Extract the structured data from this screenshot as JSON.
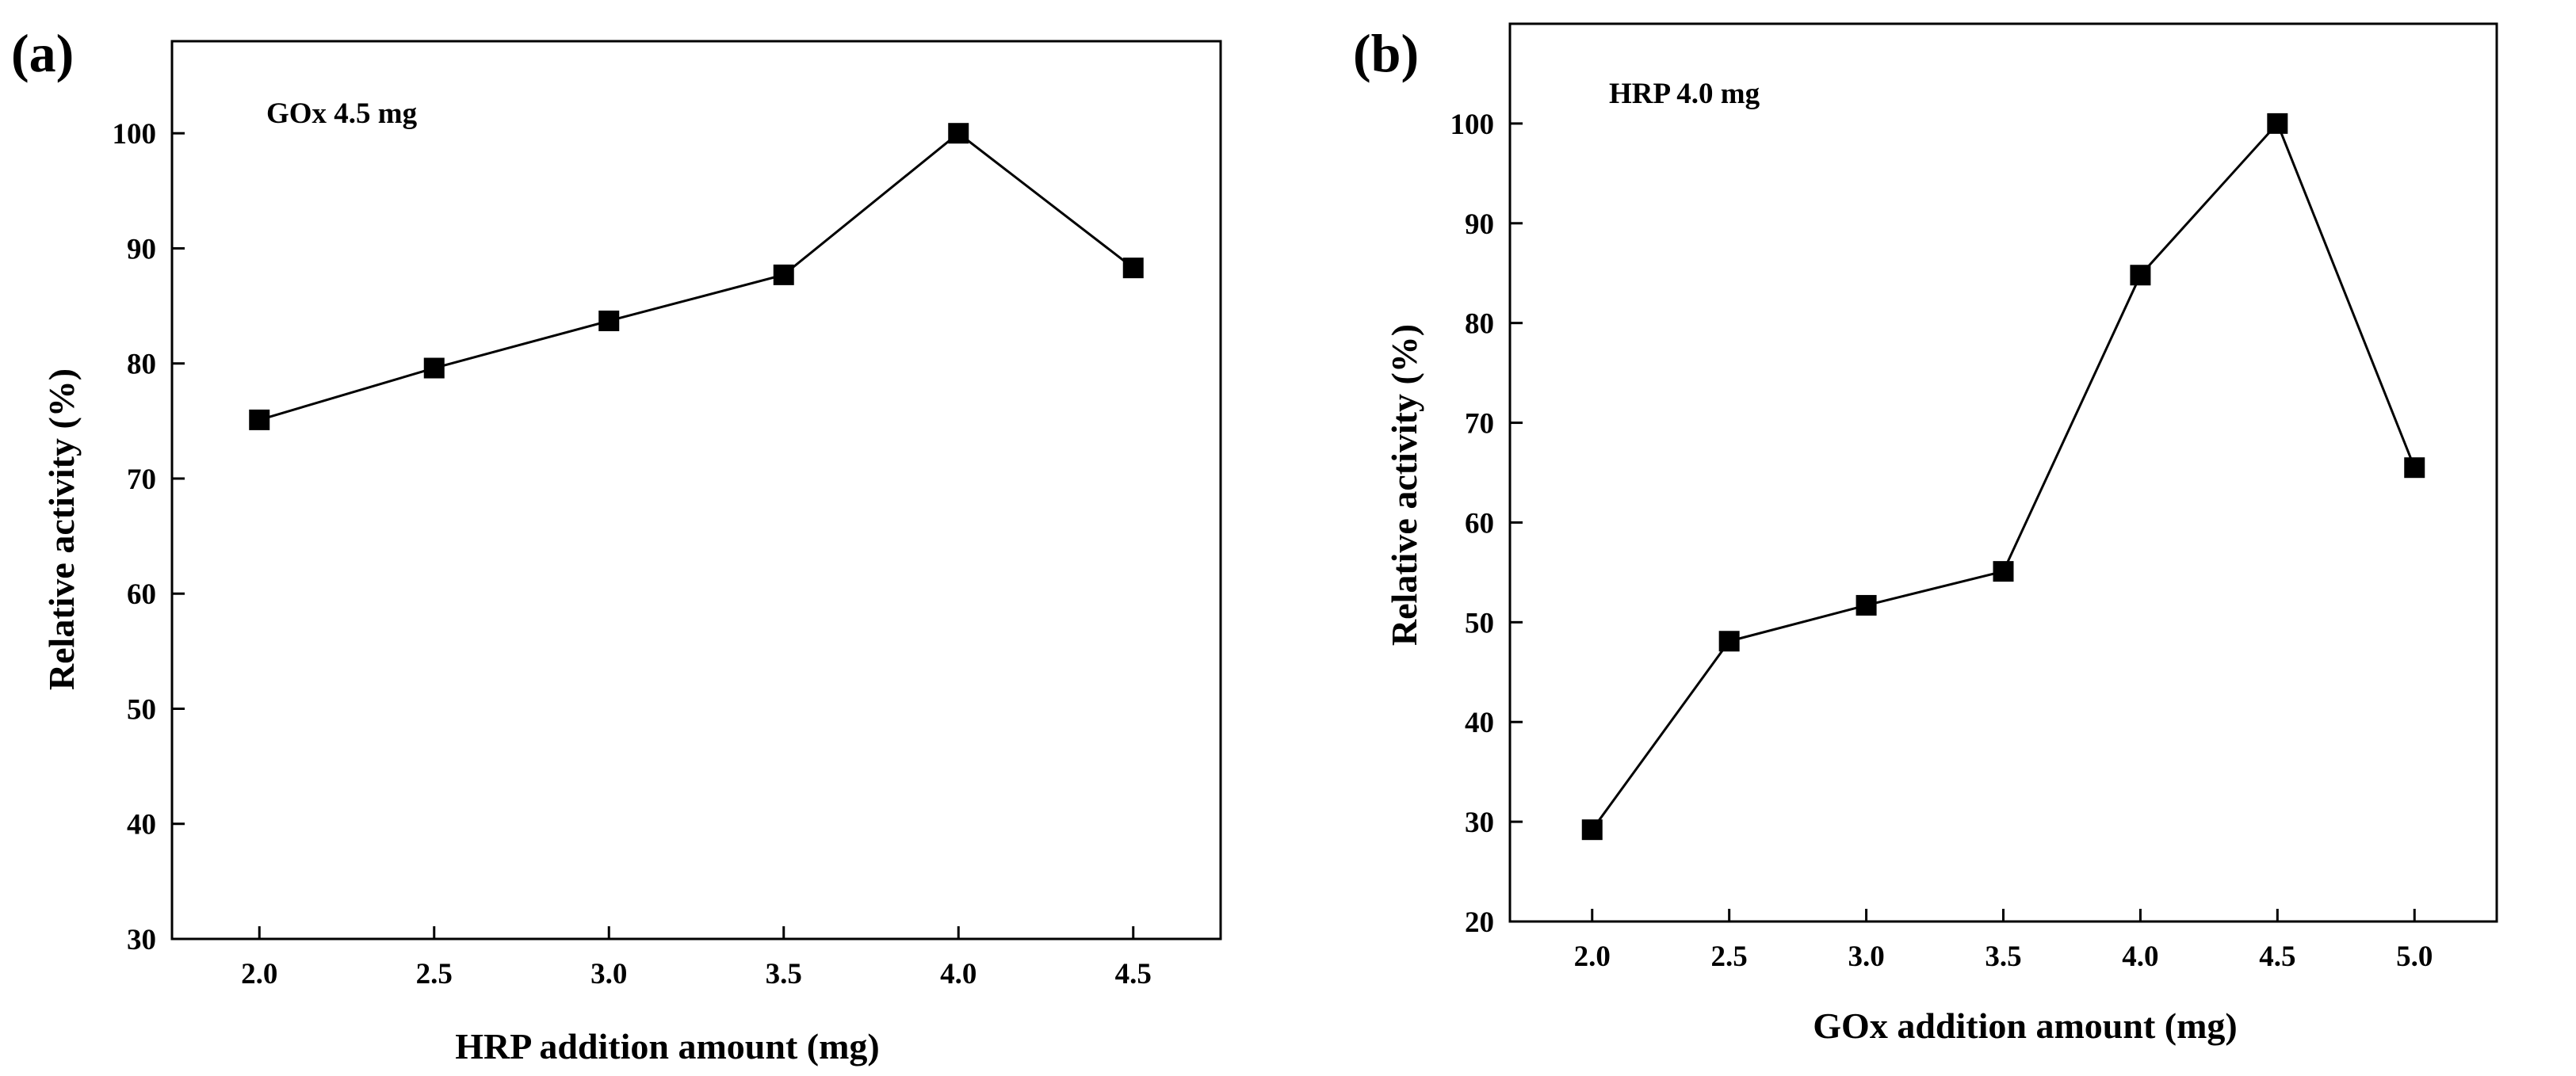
{
  "chart_data": [
    {
      "type": "line",
      "panel_label": "(a)",
      "annotation": "GOx 4.5 mg",
      "xlabel": "HRP addition amount (mg)",
      "ylabel": "Relative activity (%)",
      "x": [
        2.0,
        2.5,
        3.0,
        3.5,
        4.0,
        4.5
      ],
      "series": [
        {
          "name": "Relative activity",
          "values": [
            75.1,
            79.6,
            83.7,
            87.7,
            100.0,
            88.3
          ]
        }
      ],
      "xlim": [
        1.75,
        4.75
      ],
      "ylim": [
        30,
        108
      ],
      "xticks": [
        "2.0",
        "2.5",
        "3.0",
        "3.5",
        "4.0",
        "4.5"
      ],
      "yticks": [
        "30",
        "40",
        "50",
        "60",
        "70",
        "80",
        "90",
        "100"
      ],
      "grid": false,
      "marker": "square",
      "color": "#000000"
    },
    {
      "type": "line",
      "panel_label": "(b)",
      "annotation": "HRP 4.0 mg",
      "xlabel": "GOx addition amount (mg)",
      "ylabel": "Relative activity (%)",
      "x": [
        2.0,
        2.5,
        3.0,
        3.5,
        4.0,
        4.5,
        5.0
      ],
      "series": [
        {
          "name": "Relative activity",
          "values": [
            29.2,
            48.1,
            51.7,
            55.1,
            84.8,
            100.0,
            65.5
          ]
        }
      ],
      "xlim": [
        1.7,
        5.3
      ],
      "ylim": [
        20,
        110
      ],
      "xticks": [
        "2.0",
        "2.5",
        "3.0",
        "3.5",
        "4.0",
        "4.5",
        "5.0"
      ],
      "yticks": [
        "20",
        "30",
        "40",
        "50",
        "60",
        "70",
        "80",
        "90",
        "100"
      ],
      "grid": false,
      "marker": "square",
      "color": "#000000"
    }
  ]
}
